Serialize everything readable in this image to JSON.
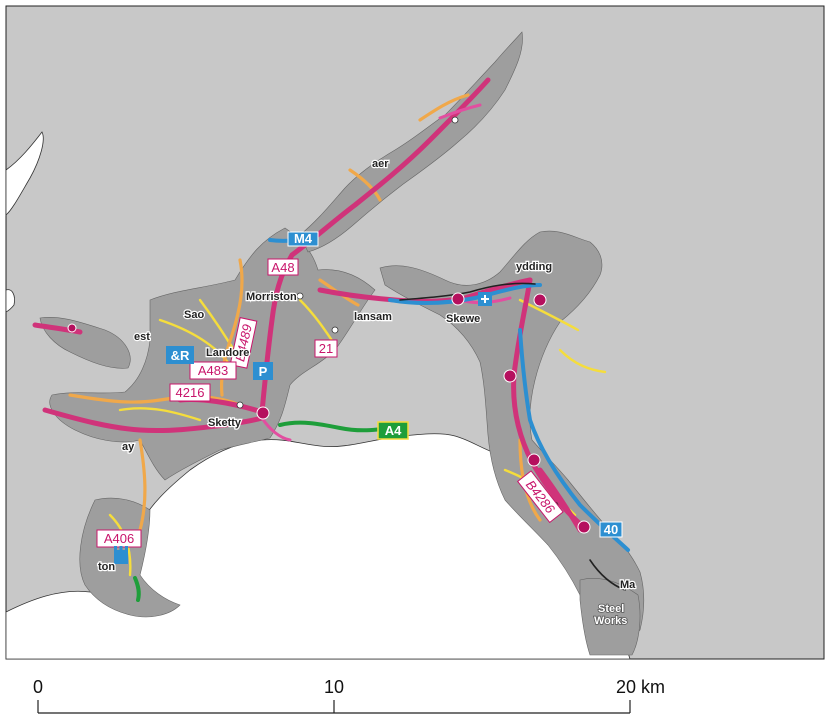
{
  "map": {
    "land_color": "#c8c8c8",
    "sea_color": "#ffffff",
    "urban_color": "#9e9e9e",
    "road_colors": {
      "primary": "#d0337a",
      "a_road": "#e24ea0",
      "b_road": "#f0a84a",
      "minor": "#f5dd3c",
      "motorway": "#2d8fd1",
      "trunk": "#1e9e3a",
      "rail": "#222222"
    },
    "places": [
      {
        "id": "morriston",
        "label": "Morriston"
      },
      {
        "id": "landore",
        "label": "Landore"
      },
      {
        "id": "sketty",
        "label": "Sketty"
      },
      {
        "id": "sao",
        "label": "Sao"
      },
      {
        "id": "est",
        "label": "est"
      },
      {
        "id": "lansam",
        "label": "lansam"
      },
      {
        "id": "skewe",
        "label": "Skewe"
      },
      {
        "id": "ydding",
        "label": "ydding"
      },
      {
        "id": "ton",
        "label": "ton"
      },
      {
        "id": "ma",
        "label": "Ma"
      },
      {
        "id": "aer",
        "label": "aer"
      },
      {
        "id": "ay",
        "label": "ay"
      },
      {
        "id": "steel1",
        "label": "Steel"
      },
      {
        "id": "steel2",
        "label": "Works"
      }
    ],
    "road_labels": [
      {
        "id": "a48",
        "label": "A48"
      },
      {
        "id": "b4489",
        "label": "B4489"
      },
      {
        "id": "a483",
        "label": "A483"
      },
      {
        "id": "a4216",
        "label": "4216"
      },
      {
        "id": "a406",
        "label": "A406"
      },
      {
        "id": "b4286",
        "label": "B4286"
      },
      {
        "id": "r21",
        "label": "21"
      },
      {
        "id": "a4green",
        "label": "A4"
      },
      {
        "id": "m4a",
        "label": "M4"
      },
      {
        "id": "r40",
        "label": "40"
      }
    ],
    "icons": [
      {
        "id": "parking",
        "label": "P"
      },
      {
        "id": "park-ride",
        "label": "&R"
      }
    ]
  },
  "scale_bar": {
    "ticks": [
      "0",
      "10",
      "20 km"
    ],
    "range_km": [
      0,
      20
    ]
  }
}
